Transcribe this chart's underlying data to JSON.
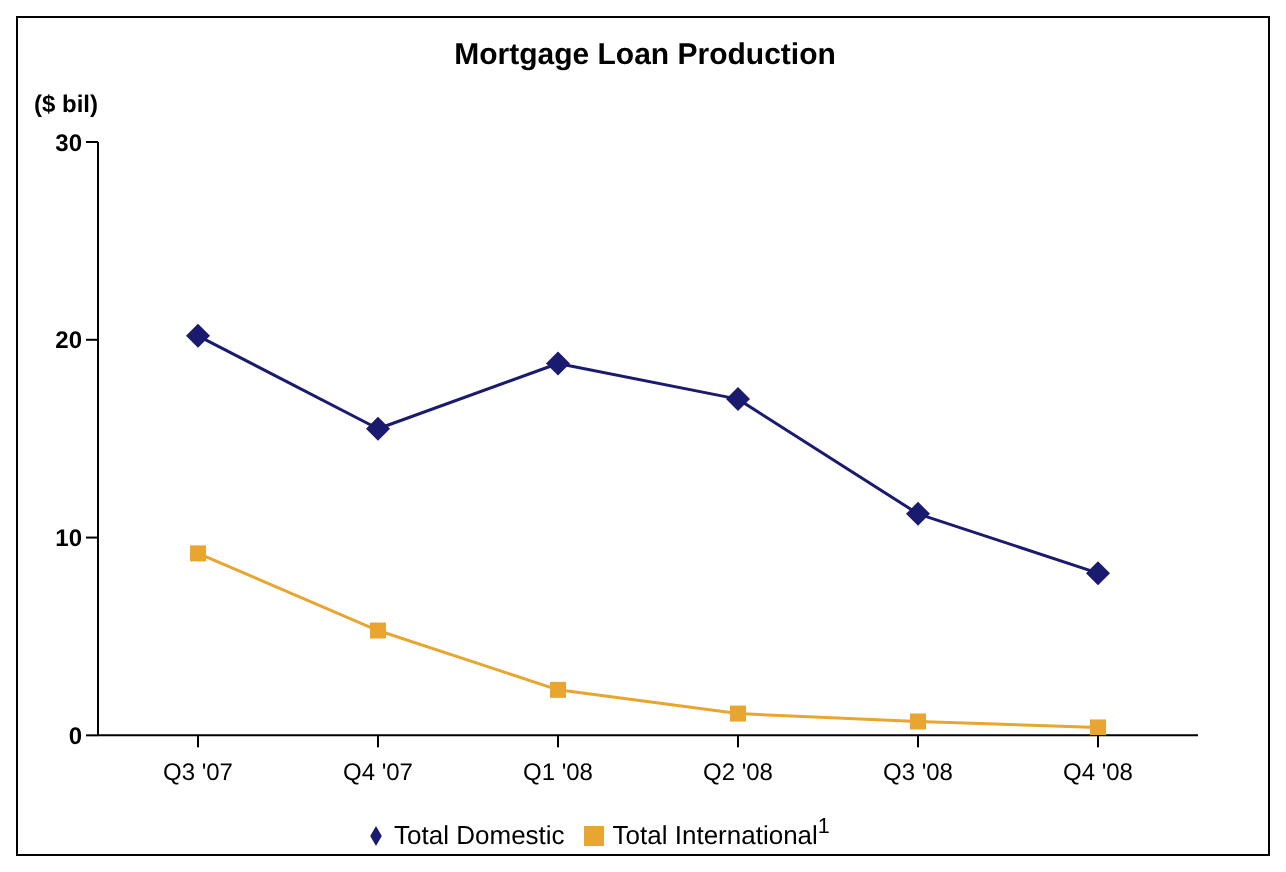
{
  "chart_data": {
    "type": "line",
    "title": "Mortgage Loan Production",
    "ylabel": "($ bil)",
    "categories": [
      "Q3 '07",
      "Q4 '07",
      "Q1 '08",
      "Q2 '08",
      "Q3 '08",
      "Q4 '08"
    ],
    "series": [
      {
        "name": "Total Domestic",
        "color": "#1a1a6e",
        "marker": "diamond",
        "values": [
          20.2,
          15.5,
          18.8,
          17.0,
          11.2,
          8.2
        ]
      },
      {
        "name": "Total International$^{1}$",
        "color": "#e8a530",
        "marker": "square",
        "values": [
          9.2,
          5.3,
          2.3,
          1.1,
          0.7,
          0.4
        ]
      }
    ],
    "ylim": [
      0,
      30
    ],
    "yticks": [
      0,
      10,
      20,
      30
    ],
    "grid": false,
    "legend": "bottom",
    "line_style": "solid"
  }
}
